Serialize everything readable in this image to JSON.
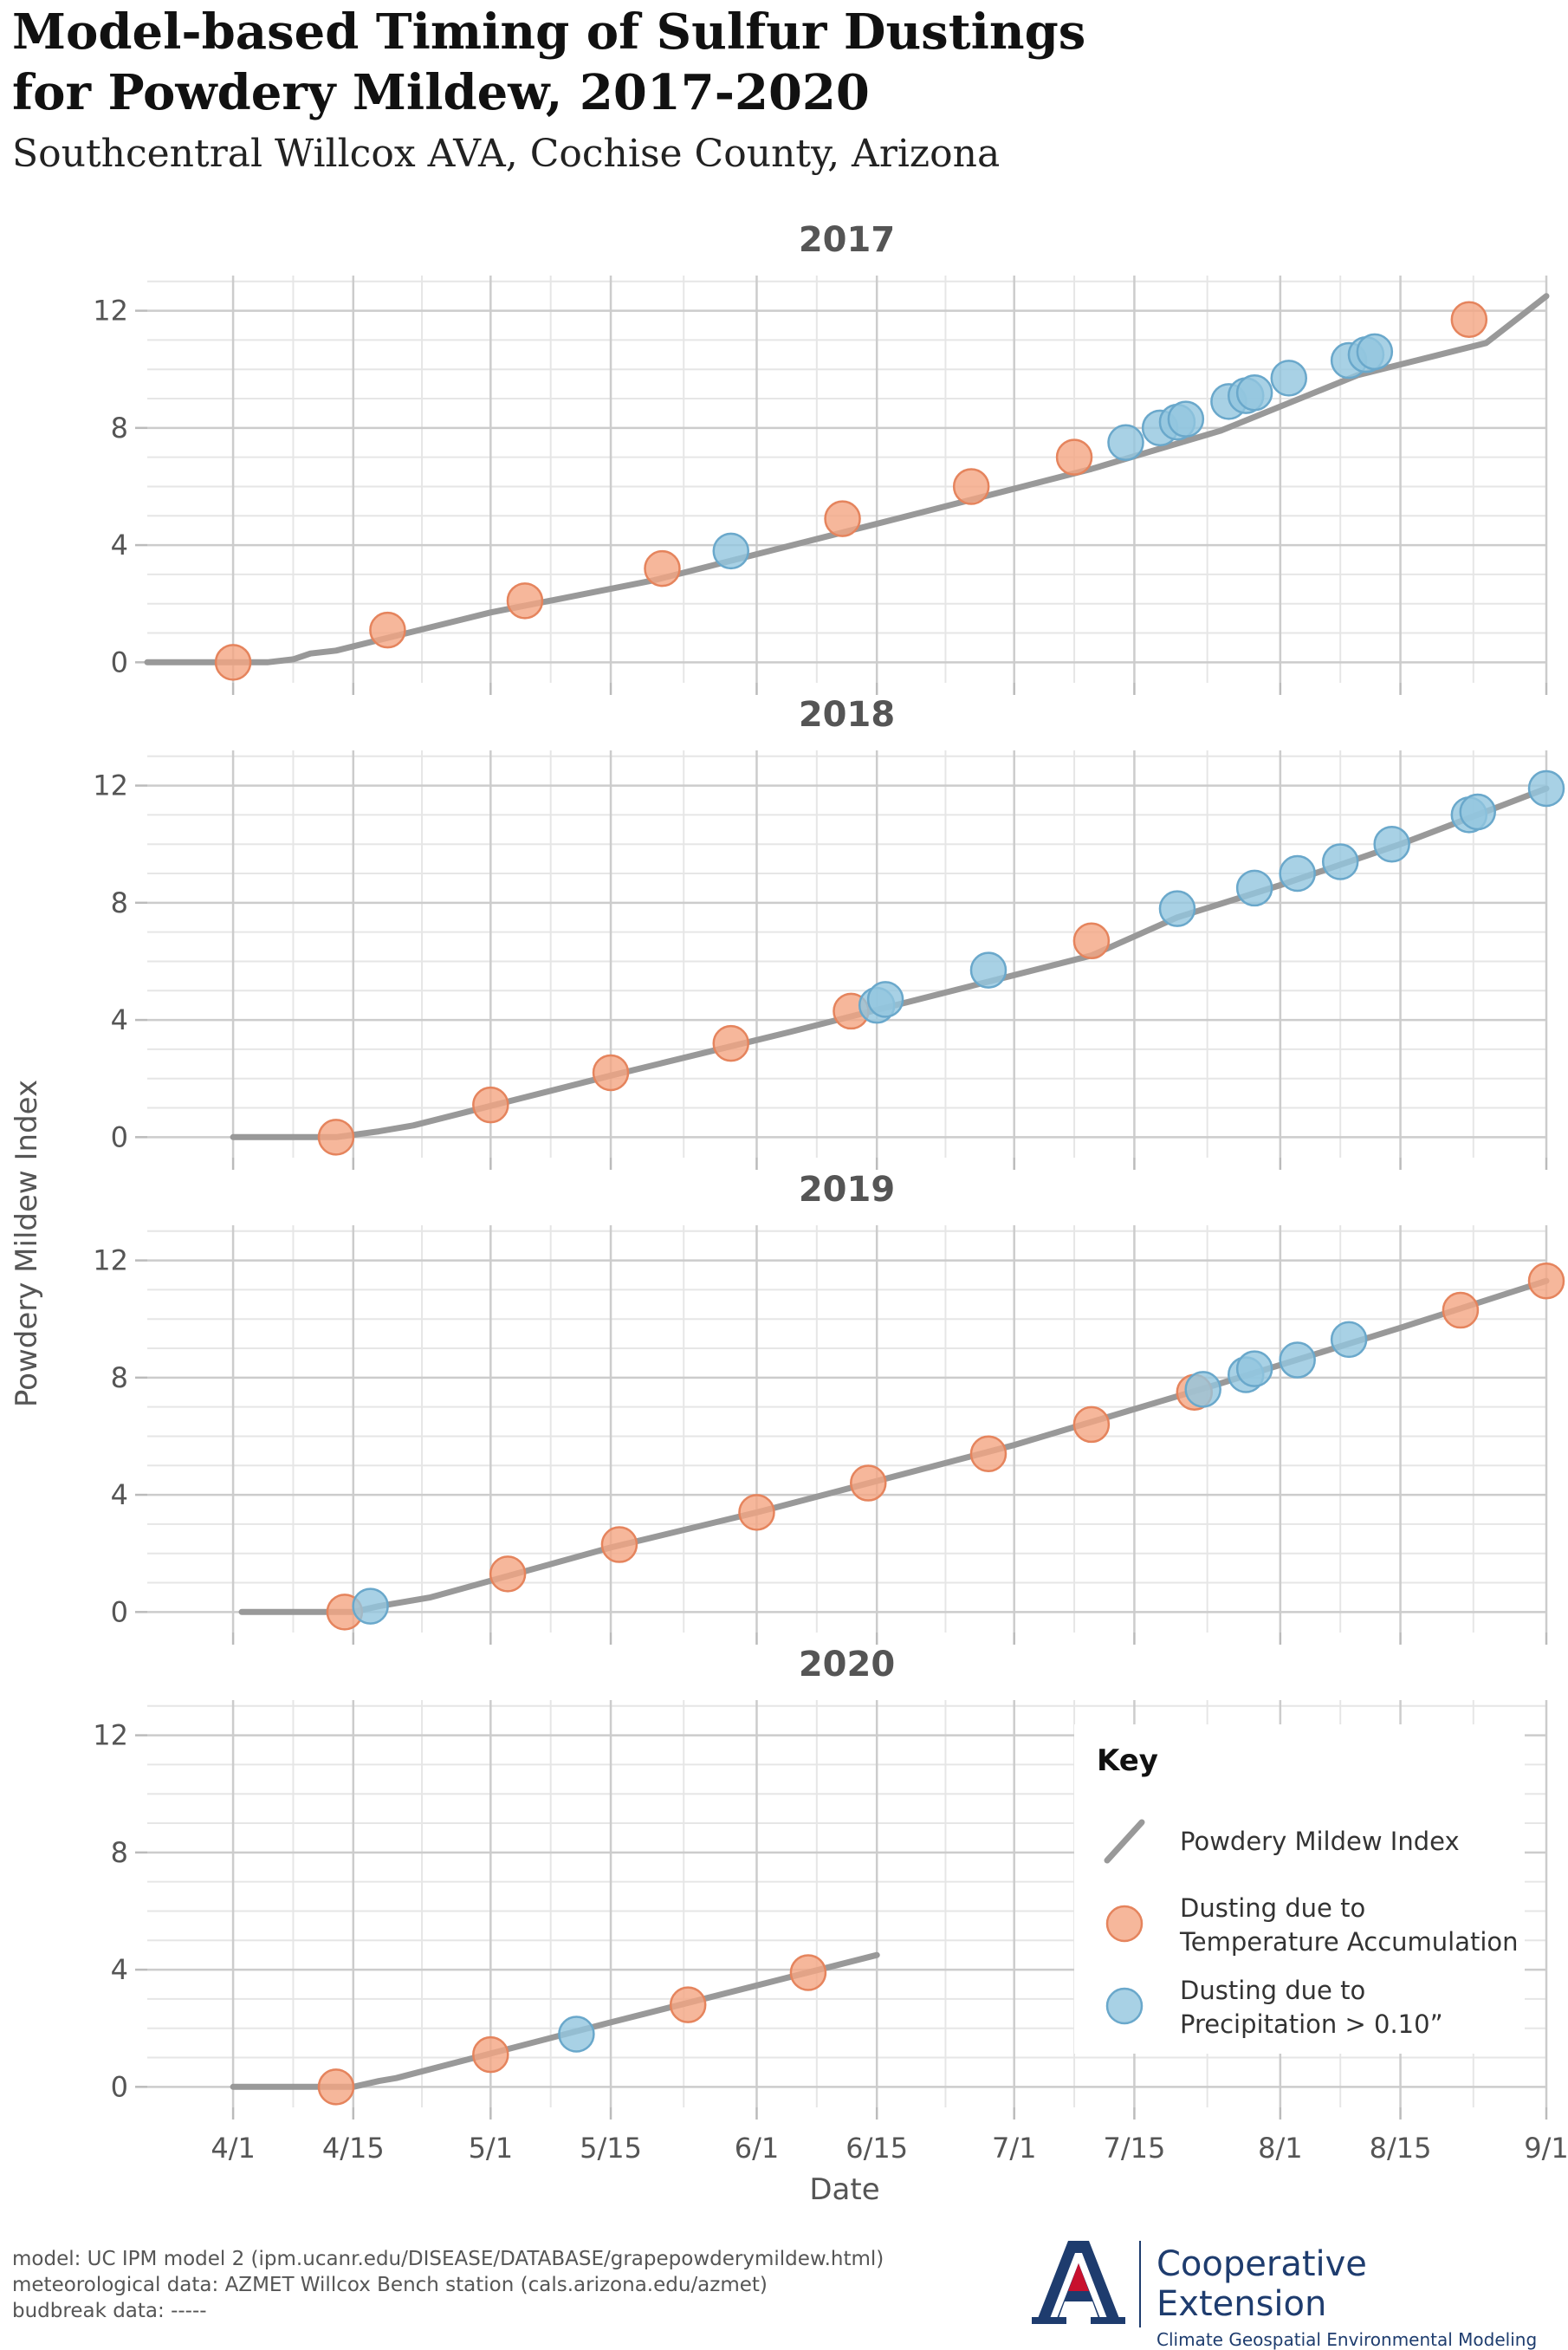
{
  "header": {
    "title_line1": "Model-based Timing of Sulfur Dustings",
    "title_line2": "for Powdery Mildew, 2017-2020",
    "subtitle": "Southcentral Willcox AVA, Cochise County, Arizona"
  },
  "chart_data": {
    "type": "line",
    "xlabel": "Date",
    "ylabel": "Powdery Mildew Index",
    "x_ticks": [
      "4/1",
      "4/15",
      "5/1",
      "5/15",
      "6/1",
      "6/15",
      "7/1",
      "7/15",
      "8/1",
      "8/15",
      "9/1"
    ],
    "x_range": [
      "2020-03-22",
      "2020-09-01"
    ],
    "y_ticks": [
      0,
      4,
      8,
      12
    ],
    "ylim": [
      -0.7,
      13.2
    ],
    "grid": true,
    "colors": {
      "line": "#999999",
      "temperature": "#f4a582",
      "precipitation": "#92c5de"
    },
    "legend": {
      "title": "Key",
      "placement": "bottom-right panel",
      "items": [
        {
          "key": "line",
          "label_lines": [
            "Powdery Mildew Index"
          ]
        },
        {
          "key": "temperature",
          "label_lines": [
            "Dusting due to",
            "Temperature Accumulation"
          ]
        },
        {
          "key": "precipitation",
          "label_lines": [
            "Dusting due to",
            "Precipitation > 0.10”"
          ]
        }
      ]
    },
    "panels": [
      {
        "title": "2017",
        "line": [
          [
            "03-22",
            0
          ],
          [
            "04-05",
            0
          ],
          [
            "04-08",
            0.1
          ],
          [
            "04-10",
            0.3
          ],
          [
            "04-13",
            0.4
          ],
          [
            "05-01",
            1.7
          ],
          [
            "05-20",
            2.8
          ],
          [
            "06-20",
            5.1
          ],
          [
            "07-10",
            6.6
          ],
          [
            "07-25",
            7.9
          ],
          [
            "08-10",
            9.8
          ],
          [
            "08-25",
            10.9
          ],
          [
            "09-01",
            12.5
          ]
        ],
        "dustings": [
          {
            "date": "04-01",
            "value": 0,
            "cause": "temperature"
          },
          {
            "date": "04-19",
            "value": 1.1,
            "cause": "temperature"
          },
          {
            "date": "05-05",
            "value": 2.1,
            "cause": "temperature"
          },
          {
            "date": "05-21",
            "value": 3.2,
            "cause": "temperature"
          },
          {
            "date": "05-29",
            "value": 3.8,
            "cause": "precipitation"
          },
          {
            "date": "06-11",
            "value": 4.9,
            "cause": "temperature"
          },
          {
            "date": "06-26",
            "value": 6.0,
            "cause": "temperature"
          },
          {
            "date": "07-08",
            "value": 7.0,
            "cause": "temperature"
          },
          {
            "date": "07-14",
            "value": 7.5,
            "cause": "precipitation"
          },
          {
            "date": "07-18",
            "value": 8.0,
            "cause": "precipitation"
          },
          {
            "date": "07-20",
            "value": 8.2,
            "cause": "precipitation"
          },
          {
            "date": "07-21",
            "value": 8.3,
            "cause": "precipitation"
          },
          {
            "date": "07-26",
            "value": 8.9,
            "cause": "precipitation"
          },
          {
            "date": "07-28",
            "value": 9.1,
            "cause": "precipitation"
          },
          {
            "date": "07-29",
            "value": 9.2,
            "cause": "precipitation"
          },
          {
            "date": "08-02",
            "value": 9.7,
            "cause": "precipitation"
          },
          {
            "date": "08-09",
            "value": 10.3,
            "cause": "precipitation"
          },
          {
            "date": "08-11",
            "value": 10.5,
            "cause": "precipitation"
          },
          {
            "date": "08-12",
            "value": 10.6,
            "cause": "precipitation"
          },
          {
            "date": "08-23",
            "value": 11.7,
            "cause": "temperature"
          }
        ]
      },
      {
        "title": "2018",
        "line": [
          [
            "04-01",
            0
          ],
          [
            "04-13",
            0
          ],
          [
            "04-18",
            0.2
          ],
          [
            "04-22",
            0.4
          ],
          [
            "05-15",
            2.1
          ],
          [
            "06-05",
            3.6
          ],
          [
            "07-10",
            6.2
          ],
          [
            "07-20",
            7.5
          ],
          [
            "08-01",
            8.6
          ],
          [
            "08-15",
            10.0
          ],
          [
            "09-01",
            11.9
          ]
        ],
        "dustings": [
          {
            "date": "04-13",
            "value": 0,
            "cause": "temperature"
          },
          {
            "date": "05-01",
            "value": 1.1,
            "cause": "temperature"
          },
          {
            "date": "05-15",
            "value": 2.2,
            "cause": "temperature"
          },
          {
            "date": "05-29",
            "value": 3.2,
            "cause": "temperature"
          },
          {
            "date": "06-12",
            "value": 4.3,
            "cause": "temperature"
          },
          {
            "date": "06-15",
            "value": 4.5,
            "cause": "precipitation"
          },
          {
            "date": "06-16",
            "value": 4.7,
            "cause": "precipitation"
          },
          {
            "date": "06-28",
            "value": 5.7,
            "cause": "precipitation"
          },
          {
            "date": "07-10",
            "value": 6.7,
            "cause": "temperature"
          },
          {
            "date": "07-20",
            "value": 7.8,
            "cause": "precipitation"
          },
          {
            "date": "07-29",
            "value": 8.5,
            "cause": "precipitation"
          },
          {
            "date": "08-03",
            "value": 9.0,
            "cause": "precipitation"
          },
          {
            "date": "08-08",
            "value": 9.4,
            "cause": "precipitation"
          },
          {
            "date": "08-14",
            "value": 10.0,
            "cause": "precipitation"
          },
          {
            "date": "08-23",
            "value": 11.0,
            "cause": "precipitation"
          },
          {
            "date": "08-24",
            "value": 11.1,
            "cause": "precipitation"
          },
          {
            "date": "09-01",
            "value": 11.9,
            "cause": "precipitation"
          }
        ]
      },
      {
        "title": "2019",
        "line": [
          [
            "04-02",
            0
          ],
          [
            "04-15",
            0
          ],
          [
            "04-18",
            0.2
          ],
          [
            "04-24",
            0.5
          ],
          [
            "05-15",
            2.2
          ],
          [
            "06-01",
            3.4
          ],
          [
            "07-01",
            5.7
          ],
          [
            "07-25",
            7.8
          ],
          [
            "08-15",
            9.7
          ],
          [
            "09-01",
            11.3
          ]
        ],
        "dustings": [
          {
            "date": "04-14",
            "value": 0,
            "cause": "temperature"
          },
          {
            "date": "04-17",
            "value": 0.2,
            "cause": "precipitation"
          },
          {
            "date": "05-03",
            "value": 1.3,
            "cause": "temperature"
          },
          {
            "date": "05-16",
            "value": 2.3,
            "cause": "temperature"
          },
          {
            "date": "06-01",
            "value": 3.4,
            "cause": "temperature"
          },
          {
            "date": "06-14",
            "value": 4.4,
            "cause": "temperature"
          },
          {
            "date": "06-28",
            "value": 5.4,
            "cause": "temperature"
          },
          {
            "date": "07-10",
            "value": 6.4,
            "cause": "temperature"
          },
          {
            "date": "07-22",
            "value": 7.5,
            "cause": "temperature"
          },
          {
            "date": "07-23",
            "value": 7.6,
            "cause": "precipitation"
          },
          {
            "date": "07-28",
            "value": 8.1,
            "cause": "precipitation"
          },
          {
            "date": "07-29",
            "value": 8.3,
            "cause": "precipitation"
          },
          {
            "date": "08-03",
            "value": 8.6,
            "cause": "precipitation"
          },
          {
            "date": "08-09",
            "value": 9.3,
            "cause": "precipitation"
          },
          {
            "date": "08-22",
            "value": 10.3,
            "cause": "temperature"
          },
          {
            "date": "09-01",
            "value": 11.3,
            "cause": "temperature"
          }
        ]
      },
      {
        "title": "2020",
        "line": [
          [
            "04-01",
            0
          ],
          [
            "04-15",
            0
          ],
          [
            "04-18",
            0.2
          ],
          [
            "04-20",
            0.3
          ],
          [
            "05-15",
            2.2
          ],
          [
            "06-15",
            4.5
          ]
        ],
        "dustings": [
          {
            "date": "04-13",
            "value": 0,
            "cause": "temperature"
          },
          {
            "date": "05-01",
            "value": 1.1,
            "cause": "temperature"
          },
          {
            "date": "05-11",
            "value": 1.8,
            "cause": "precipitation"
          },
          {
            "date": "05-24",
            "value": 2.8,
            "cause": "temperature"
          },
          {
            "date": "06-07",
            "value": 3.9,
            "cause": "temperature"
          }
        ]
      }
    ]
  },
  "footer": {
    "lines": [
      "model: UC IPM model 2 (ipm.ucanr.edu/DISEASE/DATABASE/grapepowderymildew.html)",
      "meteorological data: AZMET Willcox Bench station (cals.arizona.edu/azmet)",
      "budbreak data: -----"
    ]
  },
  "logo": {
    "name": "Cooperative Extension",
    "tagline": "Climate Geospatial Environmental Modeling",
    "icon": "university-a-logo"
  }
}
